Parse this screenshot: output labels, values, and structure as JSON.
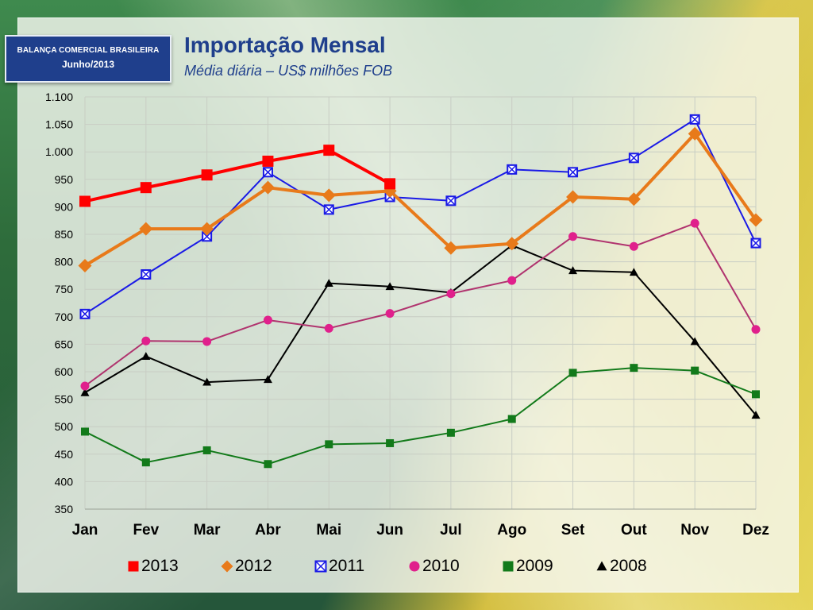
{
  "header": {
    "badge_line1": "BALANÇA COMERCIAL BRASILEIRA",
    "badge_line2": "Junho/2013",
    "title": "Importação Mensal",
    "subtitle": "Média diária – US$ milhões FOB"
  },
  "colors": {
    "badge_bg": "#1f3f8c",
    "title": "#1f3f8c",
    "2013": "#ff0000",
    "2012": "#e87a1a",
    "2011": "#1a1ae6",
    "2010": "#b0336e",
    "2010_marker": "#e0208c",
    "2009": "#127a1a",
    "2008": "#000000"
  },
  "chart_data": {
    "type": "line",
    "title": "Importação Mensal",
    "subtitle": "Média diária – US$ milhões FOB",
    "categories": [
      "Jan",
      "Fev",
      "Mar",
      "Abr",
      "Mai",
      "Jun",
      "Jul",
      "Ago",
      "Set",
      "Out",
      "Nov",
      "Dez"
    ],
    "ylim": [
      350,
      1100
    ],
    "yticks": [
      350,
      400,
      450,
      500,
      550,
      600,
      650,
      700,
      750,
      800,
      850,
      900,
      950,
      1000,
      1050,
      1100
    ],
    "ytick_labels": [
      "350",
      "400",
      "450",
      "500",
      "550",
      "600",
      "650",
      "700",
      "750",
      "800",
      "850",
      "900",
      "950",
      "1.000",
      "1.050",
      "1.100"
    ],
    "grid": true,
    "legend_position": "bottom",
    "series": [
      {
        "name": "2013",
        "marker": "square",
        "values": [
          910,
          935,
          958,
          983,
          1003,
          942,
          null,
          null,
          null,
          null,
          null,
          null
        ]
      },
      {
        "name": "2012",
        "marker": "diamond",
        "values": [
          793,
          860,
          860,
          935,
          921,
          929,
          825,
          833,
          918,
          914,
          1033,
          876
        ]
      },
      {
        "name": "2011",
        "marker": "boxx",
        "values": [
          705,
          777,
          846,
          963,
          895,
          918,
          911,
          968,
          963,
          989,
          1059,
          834
        ]
      },
      {
        "name": "2010",
        "marker": "circle",
        "values": [
          574,
          656,
          655,
          694,
          679,
          706,
          742,
          766,
          846,
          828,
          870,
          677
        ]
      },
      {
        "name": "2009",
        "marker": "square-small",
        "values": [
          491,
          435,
          457,
          432,
          468,
          470,
          489,
          514,
          598,
          607,
          602,
          559
        ]
      },
      {
        "name": "2008",
        "marker": "triangle",
        "values": [
          562,
          628,
          581,
          586,
          761,
          755,
          744,
          830,
          784,
          781,
          655,
          521
        ]
      }
    ]
  }
}
